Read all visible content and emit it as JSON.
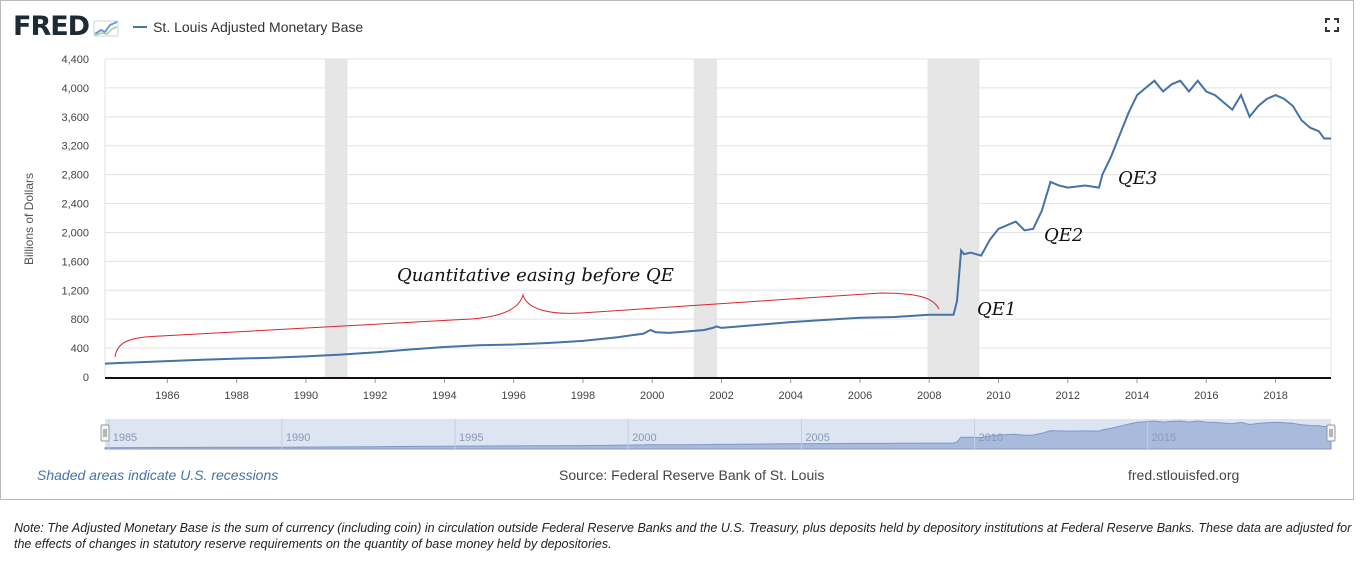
{
  "header": {
    "logo_text": "FRED",
    "series_title": "St. Louis Adjusted Monetary Base"
  },
  "footer": {
    "recessions_note": "Shaded areas indicate U.S. recessions",
    "source": "Source: Federal Reserve Bank of St. Louis",
    "site": "fred.stlouisfed.org"
  },
  "note": "Note: The Adjusted Monetary Base is the sum of currency (including coin) in circulation outside Federal Reserve Banks and the U.S. Treasury, plus deposits held by depository institutions at Federal Reserve Banks. These data are adjusted for the effects of changes in statutory reserve requirements on the quantity of base money held by depositories.",
  "colors": {
    "series": "#4572a7",
    "recession": "#e6e6e6",
    "annotation_brace": "#d9262c",
    "navigator_fill": "#c6d2ea"
  },
  "icons": {
    "fullscreen": "expand-icon",
    "logo_graph": "mini-graph-icon"
  },
  "chart_data": {
    "type": "line",
    "title": "",
    "xlabel": "",
    "ylabel": "Billions of Dollars",
    "xlim": [
      1984.2,
      2019.6
    ],
    "ylim": [
      0,
      4400
    ],
    "yticks": [
      0,
      400,
      800,
      1200,
      1600,
      2000,
      2400,
      2800,
      3200,
      3600,
      4000,
      4400
    ],
    "xticks": [
      1986,
      1988,
      1990,
      1992,
      1994,
      1996,
      1998,
      2000,
      2002,
      2004,
      2006,
      2008,
      2010,
      2012,
      2014,
      2016,
      2018
    ],
    "grid": "horizontal",
    "recessions": [
      [
        1990.55,
        1991.2
      ],
      [
        2001.2,
        2001.87
      ],
      [
        2007.95,
        2009.45
      ]
    ],
    "series": [
      {
        "x": [
          1984.2,
          1985,
          1986,
          1987,
          1988,
          1989,
          1990,
          1991,
          1992,
          1993,
          1994,
          1995,
          1996,
          1997,
          1998,
          1999,
          1999.75,
          1999.95,
          2000.1,
          2000.5,
          2001,
          2001.5,
          2001.75,
          2001.85,
          2002,
          2003,
          2004,
          2005,
          2006,
          2007,
          2008,
          2008.7,
          2008.8,
          2008.92,
          2009.0,
          2009.2,
          2009.5,
          2009.75,
          2010.0,
          2010.5,
          2010.75,
          2011.0,
          2011.25,
          2011.5,
          2011.75,
          2012.0,
          2012.5,
          2012.9,
          2013.0,
          2013.25,
          2013.5,
          2013.75,
          2014.0,
          2014.25,
          2014.5,
          2014.75,
          2015.0,
          2015.25,
          2015.5,
          2015.75,
          2016.0,
          2016.25,
          2016.5,
          2016.75,
          2017.0,
          2017.25,
          2017.5,
          2017.75,
          2018.0,
          2018.25,
          2018.5,
          2018.75,
          2019.0,
          2019.25,
          2019.4,
          2019.6
        ],
        "values": [
          185,
          200,
          220,
          240,
          255,
          265,
          285,
          310,
          340,
          380,
          415,
          440,
          450,
          470,
          500,
          550,
          600,
          650,
          620,
          610,
          630,
          650,
          680,
          700,
          680,
          720,
          760,
          790,
          820,
          830,
          860,
          860,
          1050,
          1750,
          1700,
          1720,
          1680,
          1900,
          2050,
          2150,
          2030,
          2050,
          2300,
          2700,
          2650,
          2620,
          2650,
          2620,
          2800,
          3050,
          3350,
          3650,
          3900,
          4000,
          4100,
          3950,
          4050,
          4100,
          3950,
          4100,
          3950,
          3900,
          3800,
          3700,
          3900,
          3600,
          3750,
          3850,
          3900,
          3850,
          3750,
          3550,
          3450,
          3400,
          3300,
          3300
        ]
      }
    ],
    "annotations": [
      {
        "text": "Quantitative easing before QE"
      },
      {
        "text": "QE1"
      },
      {
        "text": "QE2"
      },
      {
        "text": "QE3"
      }
    ],
    "navigator_ticks": [
      "1985",
      "1990",
      "1995",
      "2000",
      "2005",
      "2010",
      "2015"
    ]
  }
}
